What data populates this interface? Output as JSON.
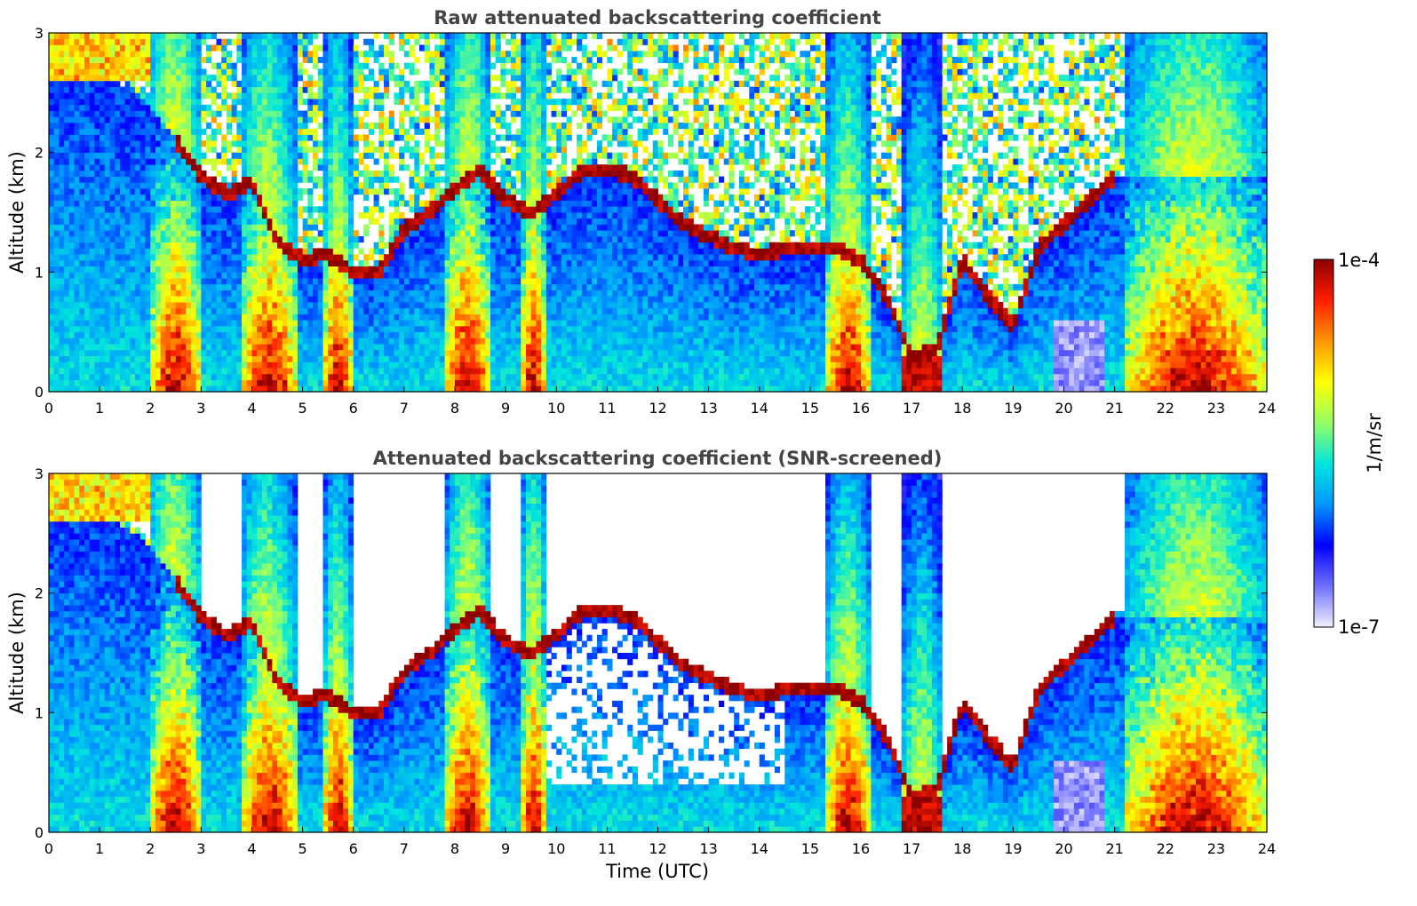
{
  "chart_data": [
    {
      "type": "heatmap",
      "title": "Raw attenuated backscattering coefficient",
      "xlabel": "",
      "ylabel": "Altitude (km)",
      "xlim": [
        0,
        24
      ],
      "ylim": [
        0,
        3
      ],
      "xticks": [
        "0",
        "1",
        "2",
        "3",
        "4",
        "5",
        "6",
        "7",
        "8",
        "9",
        "10",
        "11",
        "12",
        "13",
        "14",
        "15",
        "16",
        "17",
        "18",
        "19",
        "20",
        "21",
        "22",
        "23",
        "24"
      ],
      "yticks": [
        "0",
        "1",
        "2",
        "3"
      ],
      "screened": false,
      "cloud_layer": {
        "time": [
          0,
          1,
          2,
          2.5,
          3,
          3.5,
          4,
          4.5,
          5,
          5.5,
          6,
          6.5,
          7,
          7.5,
          8,
          8.5,
          9,
          9.5,
          10,
          10.5,
          11,
          11.5,
          12,
          12.5,
          13,
          13.5,
          14,
          14.5,
          15,
          15.5,
          16,
          16.5,
          17,
          17.5,
          18,
          18.5,
          19,
          19.5,
          20,
          20.5,
          21
        ],
        "altitude_km": [
          2.8,
          2.7,
          2.4,
          2.1,
          1.8,
          1.65,
          1.75,
          1.25,
          1.1,
          1.15,
          1.0,
          1.0,
          1.35,
          1.5,
          1.7,
          1.85,
          1.6,
          1.5,
          1.65,
          1.85,
          1.85,
          1.8,
          1.6,
          1.4,
          1.3,
          1.2,
          1.15,
          1.2,
          1.2,
          1.2,
          1.1,
          0.8,
          0.3,
          0.35,
          1.1,
          0.8,
          0.55,
          1.2,
          1.4,
          1.6,
          1.8
        ]
      }
    },
    {
      "type": "heatmap",
      "title": "Attenuated backscattering coefficient (SNR-screened)",
      "xlabel": "Time (UTC)",
      "ylabel": "Altitude (km)",
      "xlim": [
        0,
        24
      ],
      "ylim": [
        0,
        3
      ],
      "xticks": [
        "0",
        "1",
        "2",
        "3",
        "4",
        "5",
        "6",
        "7",
        "8",
        "9",
        "10",
        "11",
        "12",
        "13",
        "14",
        "15",
        "16",
        "17",
        "18",
        "19",
        "20",
        "21",
        "22",
        "23",
        "24"
      ],
      "yticks": [
        "0",
        "1",
        "2",
        "3"
      ],
      "screened": true
    }
  ],
  "colorbar": {
    "label": "1/m/sr",
    "max_label": "1e-4",
    "min_label": "1e-7",
    "scale": "log",
    "range": [
      1e-07,
      0.0001
    ],
    "colors": [
      "#f0f0ff",
      "#7070ff",
      "#0000ff",
      "#0096ff",
      "#00e6dc",
      "#96ff64",
      "#ffff00",
      "#ff9600",
      "#ff1e00",
      "#8c0000"
    ]
  }
}
